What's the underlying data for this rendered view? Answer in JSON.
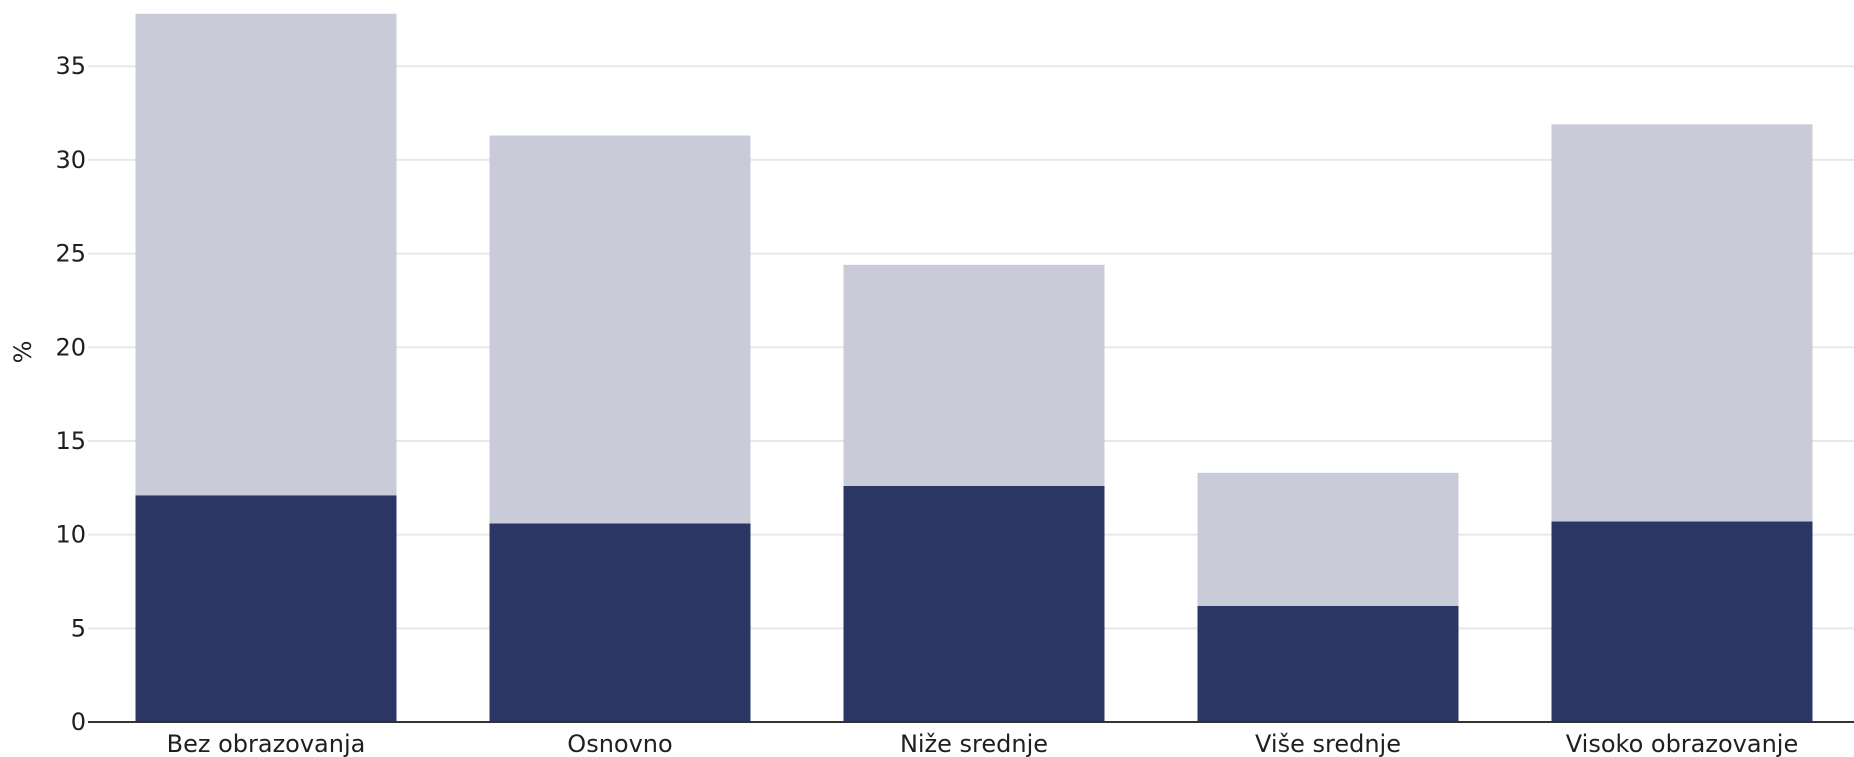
{
  "chart_data": {
    "type": "bar",
    "stacked": true,
    "categories": [
      "Bez obrazovanja",
      "Osnovno",
      "Niže srednje",
      "Više srednje",
      "Visoko obrazovanje"
    ],
    "series": [
      {
        "values": [
          12.1,
          10.6,
          12.6,
          6.2,
          10.7
        ],
        "color": "#2b3664"
      },
      {
        "values": [
          25.7,
          20.7,
          11.8,
          7.1,
          21.2
        ],
        "color": "#c9ccd8"
      }
    ],
    "ylabel": "%",
    "xlabel": "",
    "ylim": [
      0,
      38
    ],
    "yticks": [
      0,
      5,
      10,
      15,
      20,
      25,
      30,
      35
    ],
    "grid": true
  }
}
